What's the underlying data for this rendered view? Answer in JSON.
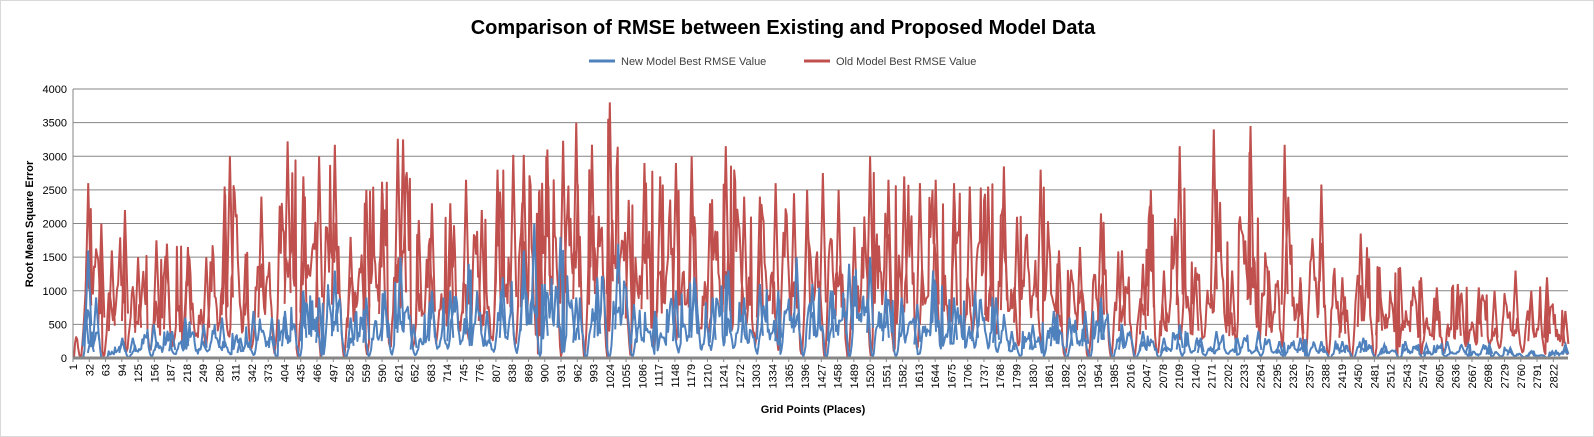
{
  "chart_data": {
    "type": "line",
    "title": "Comparison of RMSE between Existing and Proposed Model Data",
    "xlabel": "Grid Points (Places)",
    "ylabel": "Root Mean Square Error",
    "ylim": [
      0,
      4000
    ],
    "yticks": [
      0,
      500,
      1000,
      1500,
      2000,
      2500,
      3000,
      3500,
      4000
    ],
    "xlim": [
      1,
      2850
    ],
    "xticks": [
      1,
      32,
      63,
      94,
      125,
      156,
      187,
      218,
      249,
      280,
      311,
      342,
      373,
      404,
      435,
      466,
      497,
      528,
      559,
      590,
      621,
      652,
      683,
      714,
      745,
      776,
      807,
      838,
      869,
      900,
      931,
      962,
      993,
      1024,
      1055,
      1086,
      1117,
      1148,
      1179,
      1210,
      1241,
      1272,
      1303,
      1334,
      1365,
      1396,
      1427,
      1458,
      1489,
      1520,
      1551,
      1582,
      1613,
      1644,
      1675,
      1706,
      1737,
      1768,
      1799,
      1830,
      1861,
      1892,
      1923,
      1954,
      1985,
      2016,
      2047,
      2078,
      2109,
      2140,
      2171,
      2202,
      2233,
      2264,
      2295,
      2326,
      2357,
      2388,
      2419,
      2450,
      2481,
      2512,
      2543,
      2574,
      2605,
      2636,
      2667,
      2698,
      2729,
      2760,
      2791,
      2822
    ],
    "grid": true,
    "legend_position": "top",
    "series": [
      {
        "name": "New Model Best RMSE Value",
        "color": "#4f81bd",
        "values": [
          [
            1,
            0
          ],
          [
            25,
            700
          ],
          [
            30,
            1600
          ],
          [
            35,
            300
          ],
          [
            45,
            900
          ],
          [
            55,
            0
          ],
          [
            95,
            300
          ],
          [
            115,
            300
          ],
          [
            155,
            500
          ],
          [
            190,
            400
          ],
          [
            215,
            600
          ],
          [
            250,
            500
          ],
          [
            285,
            600
          ],
          [
            320,
            300
          ],
          [
            345,
            700
          ],
          [
            380,
            600
          ],
          [
            405,
            700
          ],
          [
            440,
            1000
          ],
          [
            470,
            900
          ],
          [
            500,
            1300
          ],
          [
            530,
            600
          ],
          [
            560,
            900
          ],
          [
            595,
            1000
          ],
          [
            625,
            1500
          ],
          [
            650,
            500
          ],
          [
            685,
            1000
          ],
          [
            720,
            1000
          ],
          [
            755,
            1400
          ],
          [
            790,
            700
          ],
          [
            820,
            1200
          ],
          [
            860,
            1600
          ],
          [
            880,
            2000
          ],
          [
            900,
            1100
          ],
          [
            930,
            1800
          ],
          [
            960,
            900
          ],
          [
            1000,
            1200
          ],
          [
            1040,
            1700
          ],
          [
            1070,
            800
          ],
          [
            1110,
            700
          ],
          [
            1150,
            1000
          ],
          [
            1185,
            1200
          ],
          [
            1220,
            900
          ],
          [
            1250,
            1300
          ],
          [
            1280,
            900
          ],
          [
            1310,
            1100
          ],
          [
            1345,
            1000
          ],
          [
            1380,
            1500
          ],
          [
            1410,
            1100
          ],
          [
            1445,
            1000
          ],
          [
            1480,
            1400
          ],
          [
            1520,
            1500
          ],
          [
            1550,
            1000
          ],
          [
            1580,
            900
          ],
          [
            1610,
            800
          ],
          [
            1640,
            1300
          ],
          [
            1680,
            900
          ],
          [
            1720,
            1000
          ],
          [
            1760,
            900
          ],
          [
            1790,
            400
          ],
          [
            1830,
            500
          ],
          [
            1870,
            700
          ],
          [
            1900,
            600
          ],
          [
            1930,
            700
          ],
          [
            1960,
            900
          ],
          [
            2000,
            500
          ],
          [
            2040,
            400
          ],
          [
            2080,
            300
          ],
          [
            2110,
            500
          ],
          [
            2150,
            300
          ],
          [
            2180,
            400
          ],
          [
            2220,
            300
          ],
          [
            2260,
            400
          ],
          [
            2300,
            250
          ],
          [
            2340,
            300
          ],
          [
            2380,
            250
          ],
          [
            2420,
            250
          ],
          [
            2460,
            300
          ],
          [
            2500,
            200
          ],
          [
            2540,
            250
          ],
          [
            2580,
            200
          ],
          [
            2620,
            250
          ],
          [
            2660,
            200
          ],
          [
            2700,
            200
          ],
          [
            2740,
            150
          ],
          [
            2780,
            100
          ],
          [
            2820,
            100
          ],
          [
            2845,
            200
          ]
        ]
      },
      {
        "name": "Old Model Best RMSE Value",
        "color": "#c0504d",
        "values": [
          [
            1,
            0
          ],
          [
            30,
            2600
          ],
          [
            55,
            2000
          ],
          [
            75,
            1600
          ],
          [
            100,
            2200
          ],
          [
            125,
            1500
          ],
          [
            160,
            1750
          ],
          [
            180,
            1700
          ],
          [
            220,
            1650
          ],
          [
            255,
            1500
          ],
          [
            290,
            2550
          ],
          [
            300,
            3000
          ],
          [
            330,
            1550
          ],
          [
            360,
            2400
          ],
          [
            410,
            3220
          ],
          [
            440,
            2700
          ],
          [
            470,
            3000
          ],
          [
            500,
            3170
          ],
          [
            530,
            1800
          ],
          [
            560,
            2500
          ],
          [
            590,
            2620
          ],
          [
            620,
            3260
          ],
          [
            630,
            3250
          ],
          [
            660,
            2050
          ],
          [
            685,
            2300
          ],
          [
            720,
            2300
          ],
          [
            750,
            2650
          ],
          [
            780,
            2200
          ],
          [
            810,
            2800
          ],
          [
            840,
            3020
          ],
          [
            860,
            3020
          ],
          [
            890,
            2500
          ],
          [
            905,
            3100
          ],
          [
            935,
            3230
          ],
          [
            960,
            3500
          ],
          [
            990,
            3170
          ],
          [
            1024,
            3800
          ],
          [
            1060,
            2350
          ],
          [
            1090,
            2900
          ],
          [
            1120,
            2700
          ],
          [
            1150,
            2900
          ],
          [
            1180,
            3000
          ],
          [
            1215,
            2300
          ],
          [
            1245,
            3150
          ],
          [
            1280,
            2400
          ],
          [
            1310,
            2400
          ],
          [
            1340,
            2600
          ],
          [
            1375,
            2450
          ],
          [
            1400,
            2500
          ],
          [
            1430,
            2750
          ],
          [
            1460,
            2500
          ],
          [
            1490,
            1950
          ],
          [
            1520,
            3000
          ],
          [
            1555,
            2650
          ],
          [
            1585,
            2700
          ],
          [
            1615,
            2600
          ],
          [
            1645,
            2650
          ],
          [
            1680,
            2600
          ],
          [
            1710,
            2550
          ],
          [
            1745,
            2550
          ],
          [
            1775,
            2850
          ],
          [
            1800,
            2100
          ],
          [
            1845,
            2800
          ],
          [
            1880,
            1600
          ],
          [
            1920,
            1650
          ],
          [
            1960,
            2150
          ],
          [
            2000,
            1600
          ],
          [
            2040,
            1400
          ],
          [
            2055,
            2500
          ],
          [
            2080,
            1300
          ],
          [
            2110,
            3150
          ],
          [
            2140,
            1350
          ],
          [
            2175,
            3400
          ],
          [
            2210,
            1300
          ],
          [
            2245,
            3450
          ],
          [
            2280,
            1300
          ],
          [
            2310,
            3170
          ],
          [
            2340,
            1200
          ],
          [
            2380,
            2580
          ],
          [
            2420,
            1200
          ],
          [
            2455,
            1850
          ],
          [
            2490,
            1350
          ],
          [
            2530,
            1350
          ],
          [
            2570,
            1200
          ],
          [
            2600,
            1050
          ],
          [
            2640,
            1100
          ],
          [
            2680,
            1050
          ],
          [
            2710,
            1000
          ],
          [
            2750,
            1300
          ],
          [
            2780,
            1000
          ],
          [
            2810,
            1200
          ],
          [
            2845,
            700
          ]
        ]
      }
    ]
  }
}
